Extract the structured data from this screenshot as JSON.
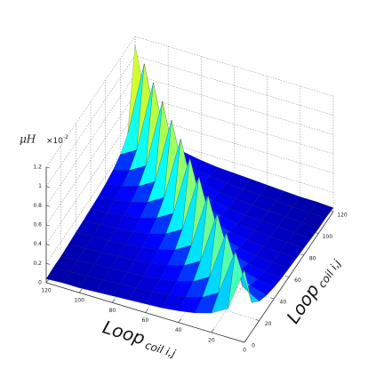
{
  "chart_data": {
    "type": "surface",
    "xlabel": "Loop",
    "xlabel_sub": "coil i,j",
    "ylabel": "Loop",
    "ylabel_sub": "coil i,j",
    "zlabel": "μH",
    "z_multiplier": "×10",
    "z_multiplier_exp": "-2",
    "x": [
      0,
      10,
      20,
      30,
      40,
      50,
      60,
      70,
      80,
      90,
      100,
      110,
      120
    ],
    "y": [
      0,
      10,
      20,
      30,
      40,
      50,
      60,
      70,
      80,
      90,
      100,
      110,
      120
    ],
    "z": [
      [
        0.75,
        0.3,
        0.2,
        0.15,
        0.12,
        0.1,
        0.09,
        0.08,
        0.07,
        0.06,
        0.05,
        0.05,
        0.04
      ],
      [
        0.3,
        0.78,
        0.3,
        0.2,
        0.15,
        0.12,
        0.1,
        0.09,
        0.08,
        0.07,
        0.06,
        0.05,
        0.05
      ],
      [
        0.2,
        0.3,
        0.81,
        0.3,
        0.2,
        0.15,
        0.12,
        0.1,
        0.09,
        0.08,
        0.07,
        0.06,
        0.05
      ],
      [
        0.15,
        0.2,
        0.3,
        0.84,
        0.3,
        0.2,
        0.15,
        0.12,
        0.1,
        0.09,
        0.08,
        0.07,
        0.06
      ],
      [
        0.12,
        0.15,
        0.2,
        0.3,
        0.87,
        0.3,
        0.2,
        0.15,
        0.12,
        0.1,
        0.09,
        0.08,
        0.07
      ],
      [
        0.1,
        0.12,
        0.15,
        0.2,
        0.3,
        0.9,
        0.3,
        0.2,
        0.15,
        0.12,
        0.1,
        0.09,
        0.08
      ],
      [
        0.09,
        0.1,
        0.12,
        0.15,
        0.2,
        0.3,
        0.93,
        0.3,
        0.2,
        0.15,
        0.12,
        0.1,
        0.09
      ],
      [
        0.08,
        0.09,
        0.1,
        0.12,
        0.15,
        0.2,
        0.3,
        0.96,
        0.3,
        0.2,
        0.15,
        0.12,
        0.1
      ],
      [
        0.07,
        0.08,
        0.09,
        0.1,
        0.12,
        0.15,
        0.2,
        0.3,
        0.99,
        0.3,
        0.2,
        0.15,
        0.12
      ],
      [
        0.06,
        0.07,
        0.08,
        0.09,
        0.1,
        0.12,
        0.15,
        0.2,
        0.3,
        1.02,
        0.3,
        0.2,
        0.15
      ],
      [
        0.05,
        0.06,
        0.07,
        0.08,
        0.09,
        0.1,
        0.12,
        0.15,
        0.2,
        0.3,
        1.05,
        0.3,
        0.2
      ],
      [
        0.05,
        0.05,
        0.06,
        0.07,
        0.08,
        0.09,
        0.1,
        0.12,
        0.15,
        0.2,
        0.3,
        1.08,
        0.3
      ],
      [
        0.04,
        0.05,
        0.05,
        0.06,
        0.07,
        0.08,
        0.09,
        0.1,
        0.12,
        0.15,
        0.2,
        0.3,
        1.11
      ]
    ],
    "xlim": [
      0,
      120
    ],
    "ylim": [
      0,
      120
    ],
    "zlim": [
      0,
      1.2
    ],
    "xticks": [
      0,
      20,
      40,
      60,
      80,
      100,
      120
    ],
    "yticks": [
      0,
      20,
      40,
      60,
      80,
      100,
      120
    ],
    "zticks": [
      0,
      0.2,
      0.4,
      0.6,
      0.8,
      1,
      1.2
    ],
    "colormap": "jet",
    "grid": true
  }
}
